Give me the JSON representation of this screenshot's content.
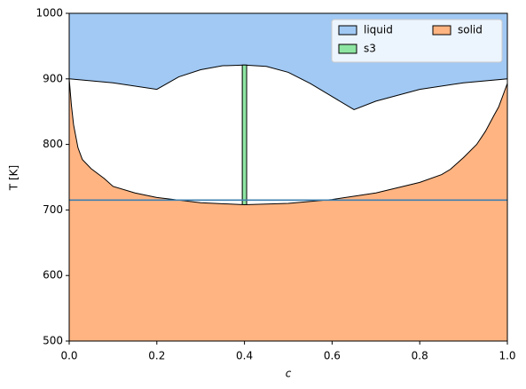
{
  "chart_data": {
    "type": "area",
    "xlabel": "c",
    "ylabel": "T [K]",
    "xlim": [
      0,
      1
    ],
    "ylim": [
      500,
      1000
    ],
    "xticks": [
      {
        "value": 0,
        "label": "0.0"
      },
      0.2,
      0.4,
      0.6,
      0.8,
      {
        "value": 1,
        "label": "1.0"
      }
    ],
    "yticks": [
      500,
      600,
      700,
      800,
      900,
      1000
    ],
    "legend": "upper right",
    "legend_columns": 2,
    "series": [
      {
        "name": "liquid",
        "color": "#a1c9f4",
        "fill": "above",
        "x": [
          0,
          0.1,
          0.2,
          0.25,
          0.3,
          0.35,
          0.4,
          0.45,
          0.5,
          0.55,
          0.6,
          0.65,
          0.7,
          0.8,
          0.9,
          1
        ],
        "values": [
          900,
          894,
          884,
          903,
          914,
          920,
          921,
          919,
          910,
          893,
          873,
          853,
          866,
          884,
          894,
          900
        ]
      },
      {
        "name": "s3",
        "color": "#8de5a1",
        "fill": "between",
        "x": [
          0.395,
          0.405
        ],
        "values": [
          921,
          921
        ],
        "lower": [
          708,
          708
        ]
      },
      {
        "name": "solid",
        "color": "#ffb482",
        "fill": "below",
        "x": [
          0,
          0.005,
          0.01,
          0.02,
          0.03,
          0.05,
          0.08,
          0.1,
          0.15,
          0.2,
          0.3,
          0.4,
          0.5,
          0.6,
          0.7,
          0.8,
          0.85,
          0.87,
          0.9,
          0.93,
          0.95,
          0.97,
          0.98,
          0.99,
          1
        ],
        "values": [
          900,
          860,
          830,
          795,
          777,
          763,
          748,
          736,
          726,
          719,
          711,
          708,
          710,
          716,
          726,
          742,
          754,
          762,
          780,
          800,
          820,
          845,
          857,
          875,
          893
        ]
      }
    ],
    "hline": {
      "value": 715,
      "color": "#3f7fae"
    }
  }
}
